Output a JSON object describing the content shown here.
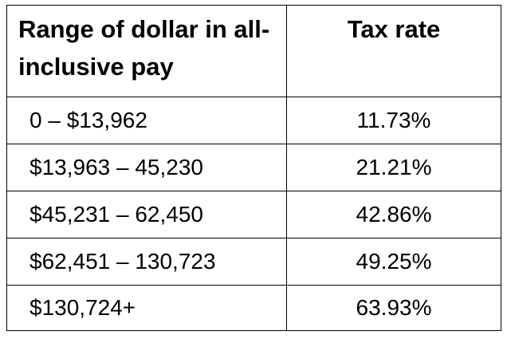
{
  "table": {
    "header": [
      "Range of dollar in all-inclusive pay",
      "Tax rate"
    ],
    "rows": [
      [
        "0 – $13,962",
        "11.73%"
      ],
      [
        "$13,963 – 45,230",
        "21.21%"
      ],
      [
        "$45,231 – 62,450",
        "42.86%"
      ],
      [
        "$62,451 – 130,723",
        "49.25%"
      ],
      [
        "$130,724+",
        "63.93%"
      ]
    ]
  }
}
